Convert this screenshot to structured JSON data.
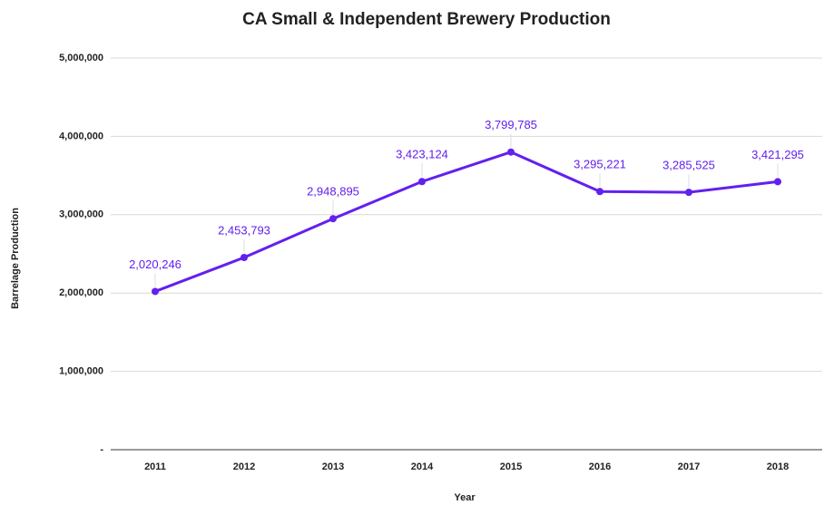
{
  "chart_data": {
    "type": "line",
    "title": "CA Small & Independent Brewery Production",
    "xlabel": "Year",
    "ylabel": "Barrelage Production",
    "categories": [
      "2011",
      "2012",
      "2013",
      "2014",
      "2015",
      "2016",
      "2017",
      "2018"
    ],
    "series": [
      {
        "name": "Barrelage Production",
        "color": "#6320ee",
        "values": [
          2020246,
          2453793,
          2948895,
          3423124,
          3799785,
          3295221,
          3285525,
          3421295
        ],
        "value_labels": [
          "2,020,246",
          "2,453,793",
          "2,948,895",
          "3,423,124",
          "3,799,785",
          "3,295,221",
          "3,285,525",
          "3,421,295"
        ]
      }
    ],
    "ylim": [
      0,
      5000000
    ],
    "yticks": [
      {
        "value": 0,
        "label": "-"
      },
      {
        "value": 1000000,
        "label": "1,000,000"
      },
      {
        "value": 2000000,
        "label": "2,000,000"
      },
      {
        "value": 3000000,
        "label": "3,000,000"
      },
      {
        "value": 4000000,
        "label": "4,000,000"
      },
      {
        "value": 5000000,
        "label": "5,000,000"
      }
    ],
    "grid": true
  }
}
